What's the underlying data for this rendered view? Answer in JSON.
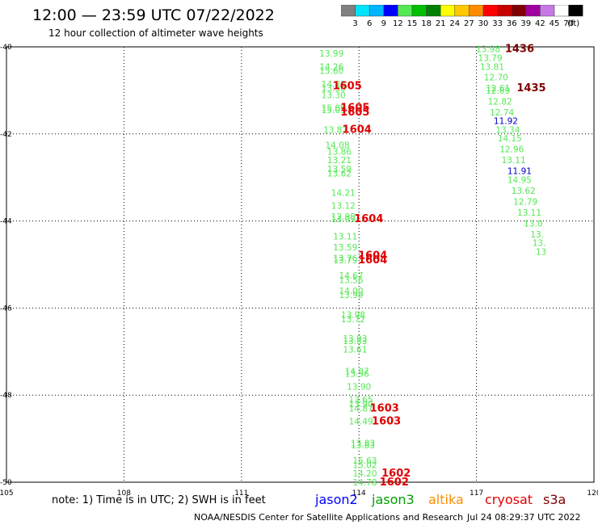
{
  "header": {
    "title": "12:00 — 23:59 UTC 07/22/2022",
    "subtitle": "12 hour collection of altimeter wave heights"
  },
  "colorbar": {
    "unit": "(ft)",
    "steps": [
      {
        "label": "3",
        "color": "#808080"
      },
      {
        "label": "6",
        "color": "#00e5ff"
      },
      {
        "label": "9",
        "color": "#00b4ff"
      },
      {
        "label": "12",
        "color": "#0000ff"
      },
      {
        "label": "15",
        "color": "#55e855"
      },
      {
        "label": "18",
        "color": "#00c000"
      },
      {
        "label": "21",
        "color": "#008000"
      },
      {
        "label": "24",
        "color": "#ffff00"
      },
      {
        "label": "27",
        "color": "#ffc800"
      },
      {
        "label": "30",
        "color": "#ff8c00"
      },
      {
        "label": "33",
        "color": "#ff0000"
      },
      {
        "label": "36",
        "color": "#c80000"
      },
      {
        "label": "39",
        "color": "#800000"
      },
      {
        "label": "42",
        "color": "#a000a0"
      },
      {
        "label": "45",
        "color": "#c878e6"
      },
      {
        "label": "70",
        "color": "#ffffff"
      },
      {
        "label": "",
        "color": "#000000"
      }
    ]
  },
  "map": {
    "lon_range": [
      105,
      120
    ],
    "lat_range": [
      -50,
      -40
    ],
    "lon_ticks": [
      "105",
      "108",
      "111",
      "114",
      "117",
      "120"
    ],
    "lat_ticks": [
      "-40",
      "-42",
      "-44",
      "-46",
      "-48",
      "-50"
    ],
    "colors": {
      "green": "#55e855",
      "red": "#e00000",
      "darkred": "#800000",
      "blue": "#0000c0"
    },
    "observations": [
      {
        "lon": 113.3,
        "lat": -40.15,
        "text": "13.99",
        "color": "green"
      },
      {
        "lon": 113.3,
        "lat": -40.45,
        "text": "14.26",
        "color": "green"
      },
      {
        "lon": 113.3,
        "lat": -40.55,
        "text": "15.60",
        "color": "green"
      },
      {
        "lon": 113.35,
        "lat": -40.85,
        "text": "14.22",
        "color": "green"
      },
      {
        "lon": 113.35,
        "lat": -40.95,
        "text": "13.30",
        "color": "green"
      },
      {
        "lon": 113.35,
        "lat": -41.1,
        "text": "13.30",
        "color": "green"
      },
      {
        "lon": 113.35,
        "lat": -41.4,
        "text": "15.09",
        "color": "green"
      },
      {
        "lon": 113.35,
        "lat": -41.45,
        "text": "15.03",
        "color": "green"
      },
      {
        "lon": 113.4,
        "lat": -41.9,
        "text": "13.82",
        "color": "green"
      },
      {
        "lon": 113.45,
        "lat": -42.25,
        "text": "14.08",
        "color": "green"
      },
      {
        "lon": 113.5,
        "lat": -42.4,
        "text": "13.86",
        "color": "green"
      },
      {
        "lon": 113.5,
        "lat": -42.6,
        "text": "13.21",
        "color": "green"
      },
      {
        "lon": 113.5,
        "lat": -42.8,
        "text": "13.59",
        "color": "green"
      },
      {
        "lon": 113.5,
        "lat": -42.9,
        "text": "13.62",
        "color": "green"
      },
      {
        "lon": 113.6,
        "lat": -43.35,
        "text": "14.21",
        "color": "green"
      },
      {
        "lon": 113.6,
        "lat": -43.65,
        "text": "13.12",
        "color": "green"
      },
      {
        "lon": 113.6,
        "lat": -43.9,
        "text": "12.98",
        "color": "green"
      },
      {
        "lon": 113.6,
        "lat": -43.95,
        "text": "13.03",
        "color": "green"
      },
      {
        "lon": 113.65,
        "lat": -44.35,
        "text": "13.11",
        "color": "green"
      },
      {
        "lon": 113.65,
        "lat": -44.6,
        "text": "13.59",
        "color": "green"
      },
      {
        "lon": 113.65,
        "lat": -44.85,
        "text": "13.76",
        "color": "green"
      },
      {
        "lon": 113.65,
        "lat": -44.9,
        "text": "13.79",
        "color": "green"
      },
      {
        "lon": 113.8,
        "lat": -45.25,
        "text": "14.67",
        "color": "green"
      },
      {
        "lon": 113.8,
        "lat": -45.35,
        "text": "13.56",
        "color": "green"
      },
      {
        "lon": 113.8,
        "lat": -45.6,
        "text": "14.00",
        "color": "green"
      },
      {
        "lon": 113.8,
        "lat": -45.7,
        "text": "13.99",
        "color": "green"
      },
      {
        "lon": 113.85,
        "lat": -46.15,
        "text": "13.98",
        "color": "green"
      },
      {
        "lon": 113.85,
        "lat": -46.25,
        "text": "13.72",
        "color": "green"
      },
      {
        "lon": 113.9,
        "lat": -46.7,
        "text": "13.93",
        "color": "green"
      },
      {
        "lon": 113.9,
        "lat": -46.75,
        "text": "13.83",
        "color": "green"
      },
      {
        "lon": 113.9,
        "lat": -46.95,
        "text": "13.61",
        "color": "green"
      },
      {
        "lon": 113.95,
        "lat": -47.45,
        "text": "14.07",
        "color": "green"
      },
      {
        "lon": 113.95,
        "lat": -47.5,
        "text": "13.56",
        "color": "green"
      },
      {
        "lon": 114.0,
        "lat": -47.8,
        "text": "13.90",
        "color": "green"
      },
      {
        "lon": 114.05,
        "lat": -48.1,
        "text": "13.65",
        "color": "green"
      },
      {
        "lon": 114.05,
        "lat": -48.2,
        "text": "13.90",
        "color": "green"
      },
      {
        "lon": 114.05,
        "lat": -48.3,
        "text": "14.87",
        "color": "green"
      },
      {
        "lon": 114.05,
        "lat": -48.6,
        "text": "14.49",
        "color": "green"
      },
      {
        "lon": 114.1,
        "lat": -49.1,
        "text": "13.83",
        "color": "green"
      },
      {
        "lon": 114.1,
        "lat": -49.15,
        "text": "13.83",
        "color": "green"
      },
      {
        "lon": 114.15,
        "lat": -49.5,
        "text": "15.63",
        "color": "green"
      },
      {
        "lon": 114.15,
        "lat": -49.6,
        "text": "15.02",
        "color": "green"
      },
      {
        "lon": 114.15,
        "lat": -49.8,
        "text": "14.20",
        "color": "green"
      },
      {
        "lon": 114.15,
        "lat": -50.0,
        "text": "14.78",
        "color": "green"
      },
      {
        "lon": 113.7,
        "lat": -40.9,
        "text": "1605",
        "color": "red"
      },
      {
        "lon": 113.9,
        "lat": -41.4,
        "text": "1605",
        "color": "red"
      },
      {
        "lon": 113.9,
        "lat": -41.5,
        "text": "1605",
        "color": "red"
      },
      {
        "lon": 113.95,
        "lat": -41.9,
        "text": "1604",
        "color": "red"
      },
      {
        "lon": 114.25,
        "lat": -43.95,
        "text": "1604",
        "color": "red"
      },
      {
        "lon": 114.35,
        "lat": -44.8,
        "text": "1604",
        "color": "red"
      },
      {
        "lon": 114.35,
        "lat": -44.9,
        "text": "1604",
        "color": "red"
      },
      {
        "lon": 114.65,
        "lat": -48.3,
        "text": "1603",
        "color": "red"
      },
      {
        "lon": 114.7,
        "lat": -48.6,
        "text": "1603",
        "color": "red"
      },
      {
        "lon": 114.95,
        "lat": -49.8,
        "text": "1602",
        "color": "red"
      },
      {
        "lon": 114.9,
        "lat": -50.0,
        "text": "1602",
        "color": "red"
      },
      {
        "lon": 117.3,
        "lat": -40.05,
        "text": "13.98",
        "color": "green"
      },
      {
        "lon": 117.35,
        "lat": -40.25,
        "text": "13.79",
        "color": "green"
      },
      {
        "lon": 117.4,
        "lat": -40.45,
        "text": "13.81",
        "color": "green"
      },
      {
        "lon": 117.5,
        "lat": -40.7,
        "text": "12.70",
        "color": "green"
      },
      {
        "lon": 117.55,
        "lat": -40.95,
        "text": "12.61",
        "color": "green"
      },
      {
        "lon": 117.55,
        "lat": -41.0,
        "text": "12.69",
        "color": "green"
      },
      {
        "lon": 117.6,
        "lat": -41.25,
        "text": "12.82",
        "color": "green"
      },
      {
        "lon": 117.65,
        "lat": -41.5,
        "text": "12.74",
        "color": "green"
      },
      {
        "lon": 117.75,
        "lat": -41.7,
        "text": "11.92",
        "color": "blue"
      },
      {
        "lon": 117.8,
        "lat": -41.9,
        "text": "13.34",
        "color": "green"
      },
      {
        "lon": 117.85,
        "lat": -42.1,
        "text": "14.15",
        "color": "green"
      },
      {
        "lon": 117.9,
        "lat": -42.35,
        "text": "12.96",
        "color": "green"
      },
      {
        "lon": 117.95,
        "lat": -42.6,
        "text": "13.11",
        "color": "green"
      },
      {
        "lon": 118.1,
        "lat": -42.85,
        "text": "11.91",
        "color": "blue"
      },
      {
        "lon": 118.1,
        "lat": -43.05,
        "text": "14.95",
        "color": "green"
      },
      {
        "lon": 118.2,
        "lat": -43.3,
        "text": "13.62",
        "color": "green"
      },
      {
        "lon": 118.25,
        "lat": -43.55,
        "text": "12.79",
        "color": "green"
      },
      {
        "lon": 118.35,
        "lat": -43.8,
        "text": "13.11",
        "color": "green"
      },
      {
        "lon": 118.45,
        "lat": -44.05,
        "text": "13.0",
        "color": "green"
      },
      {
        "lon": 118.55,
        "lat": -44.3,
        "text": "13.",
        "color": "green"
      },
      {
        "lon": 118.6,
        "lat": -44.5,
        "text": "13.",
        "color": "green"
      },
      {
        "lon": 118.65,
        "lat": -44.7,
        "text": "13",
        "color": "green"
      },
      {
        "lon": 118.1,
        "lat": -40.05,
        "text": "1436",
        "color": "darkred"
      },
      {
        "lon": 118.4,
        "lat": -40.95,
        "text": "1435",
        "color": "darkred"
      }
    ]
  },
  "footer": {
    "note": "note:  1) Time is in UTC;  2) SWH is in feet",
    "satellites": [
      {
        "name": "jason2",
        "color": "#0000ff"
      },
      {
        "name": "jason3",
        "color": "#00a000"
      },
      {
        "name": "altika",
        "color": "#ff8c00"
      },
      {
        "name": "cryosat",
        "color": "#e00000"
      },
      {
        "name": "s3a",
        "color": "#800000"
      }
    ],
    "credit": "NOAA/NESDIS Center for Satellite Applications and Research",
    "timestamp": "Jul 24 08:29:37 UTC 2022"
  }
}
